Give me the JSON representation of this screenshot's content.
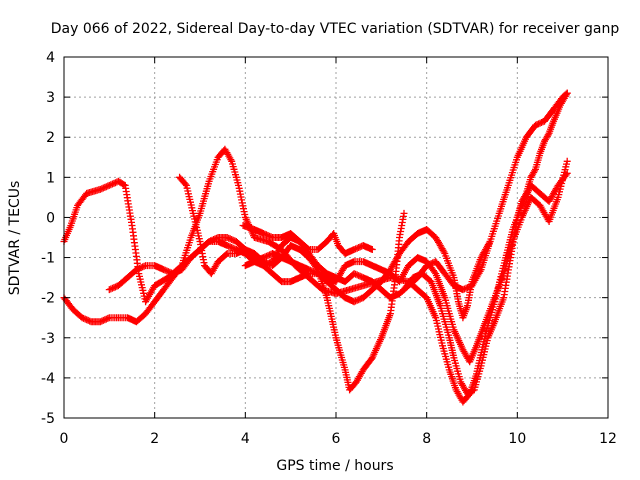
{
  "chart_data": {
    "type": "scatter",
    "title": "Day 066 of 2022, Sidereal Day-to-day VTEC variation (SDTVAR) for receiver ganp",
    "xlabel": "GPS time / hours",
    "ylabel": "SDTVAR / TECUs",
    "xlim": [
      0,
      12
    ],
    "ylim": [
      -5,
      4
    ],
    "xticks": [
      0,
      2,
      4,
      6,
      8,
      10,
      12
    ],
    "yticks": [
      -5,
      -4,
      -3,
      -2,
      -1,
      0,
      1,
      2,
      3,
      4
    ],
    "xtick_labels": [
      "0",
      "2",
      "4",
      "6",
      "8",
      "10",
      "12"
    ],
    "ytick_labels": [
      "-5",
      "-4",
      "-3",
      "-2",
      "-1",
      "0",
      "1",
      "2",
      "3",
      "4"
    ],
    "grid": true,
    "marker": "+",
    "color": "#ff0000",
    "series": [
      {
        "name": "track-1",
        "points": [
          [
            0.0,
            -0.6
          ],
          [
            0.15,
            -0.2
          ],
          [
            0.3,
            0.3
          ],
          [
            0.5,
            0.6
          ],
          [
            0.8,
            0.7
          ],
          [
            1.0,
            0.8
          ],
          [
            1.2,
            0.9
          ],
          [
            1.35,
            0.8
          ],
          [
            1.5,
            -0.2
          ],
          [
            1.65,
            -1.4
          ],
          [
            1.8,
            -2.1
          ],
          [
            2.0,
            -1.7
          ],
          [
            2.3,
            -1.5
          ],
          [
            2.6,
            -1.2
          ],
          [
            2.8,
            -0.5
          ],
          [
            3.0,
            0.1
          ],
          [
            3.2,
            0.9
          ],
          [
            3.4,
            1.5
          ],
          [
            3.55,
            1.7
          ],
          [
            3.7,
            1.4
          ],
          [
            3.85,
            0.8
          ],
          [
            4.0,
            0.0
          ],
          [
            4.2,
            -0.5
          ],
          [
            4.5,
            -0.6
          ],
          [
            4.8,
            -0.8
          ],
          [
            5.1,
            -1.2
          ],
          [
            5.4,
            -1.5
          ],
          [
            5.7,
            -1.8
          ],
          [
            6.0,
            -1.9
          ],
          [
            6.3,
            -1.8
          ],
          [
            6.6,
            -1.7
          ],
          [
            6.9,
            -1.6
          ],
          [
            7.2,
            -1.5
          ],
          [
            7.6,
            -1.6
          ],
          [
            8.0,
            -2.0
          ],
          [
            8.2,
            -2.5
          ],
          [
            8.35,
            -3.2
          ],
          [
            8.5,
            -3.8
          ],
          [
            8.65,
            -4.3
          ],
          [
            8.8,
            -4.6
          ],
          [
            8.95,
            -4.4
          ],
          [
            9.1,
            -3.9
          ],
          [
            9.3,
            -2.9
          ],
          [
            9.5,
            -2.1
          ],
          [
            9.7,
            -1.2
          ],
          [
            9.9,
            -0.3
          ],
          [
            10.1,
            0.3
          ],
          [
            10.3,
            0.8
          ],
          [
            10.5,
            0.6
          ],
          [
            10.7,
            0.4
          ],
          [
            10.9,
            0.8
          ],
          [
            11.1,
            1.1
          ]
        ]
      },
      {
        "name": "track-2",
        "points": [
          [
            0.0,
            -2.0
          ],
          [
            0.2,
            -2.3
          ],
          [
            0.4,
            -2.5
          ],
          [
            0.6,
            -2.6
          ],
          [
            0.8,
            -2.6
          ],
          [
            1.0,
            -2.5
          ],
          [
            1.2,
            -2.5
          ],
          [
            1.4,
            -2.5
          ],
          [
            1.6,
            -2.6
          ],
          [
            1.8,
            -2.4
          ],
          [
            2.0,
            -2.1
          ],
          [
            2.2,
            -1.8
          ],
          [
            2.4,
            -1.5
          ],
          [
            2.6,
            -1.2
          ],
          [
            2.8,
            -1.0
          ],
          [
            3.0,
            -0.8
          ],
          [
            3.2,
            -0.6
          ],
          [
            3.4,
            -0.6
          ],
          [
            3.6,
            -0.7
          ],
          [
            3.8,
            -0.8
          ],
          [
            4.0,
            -0.9
          ],
          [
            4.2,
            -1.1
          ],
          [
            4.4,
            -1.2
          ],
          [
            4.6,
            -1.1
          ],
          [
            4.8,
            -0.7
          ],
          [
            5.0,
            -0.5
          ],
          [
            5.2,
            -0.6
          ],
          [
            5.4,
            -0.9
          ],
          [
            5.6,
            -1.2
          ],
          [
            5.8,
            -1.4
          ],
          [
            6.0,
            -1.5
          ],
          [
            6.2,
            -1.6
          ],
          [
            6.4,
            -1.4
          ],
          [
            6.6,
            -1.5
          ],
          [
            6.8,
            -1.6
          ],
          [
            7.0,
            -1.8
          ],
          [
            7.2,
            -2.0
          ],
          [
            7.4,
            -1.9
          ],
          [
            7.6,
            -1.7
          ],
          [
            7.8,
            -1.5
          ],
          [
            8.0,
            -1.2
          ],
          [
            8.2,
            -1.1
          ],
          [
            8.4,
            -1.4
          ],
          [
            8.6,
            -1.7
          ],
          [
            8.8,
            -1.8
          ],
          [
            9.0,
            -1.7
          ],
          [
            9.2,
            -1.3
          ],
          [
            9.4,
            -0.6
          ],
          [
            9.6,
            0.1
          ],
          [
            9.8,
            0.8
          ],
          [
            10.0,
            1.5
          ],
          [
            10.2,
            2.0
          ],
          [
            10.4,
            2.3
          ],
          [
            10.6,
            2.4
          ],
          [
            10.8,
            2.7
          ],
          [
            11.0,
            3.0
          ],
          [
            11.1,
            3.1
          ]
        ]
      },
      {
        "name": "track-3",
        "points": [
          [
            2.55,
            1.0
          ],
          [
            2.7,
            0.8
          ],
          [
            2.85,
            0.1
          ],
          [
            3.0,
            -0.6
          ],
          [
            3.1,
            -1.2
          ],
          [
            3.25,
            -1.4
          ],
          [
            3.4,
            -1.1
          ],
          [
            3.6,
            -0.9
          ],
          [
            3.8,
            -0.9
          ],
          [
            4.0,
            -0.8
          ],
          [
            4.2,
            -0.9
          ],
          [
            4.4,
            -1.1
          ],
          [
            4.6,
            -1.2
          ],
          [
            4.8,
            -1.0
          ],
          [
            5.0,
            -0.7
          ],
          [
            5.2,
            -0.8
          ],
          [
            5.4,
            -1.0
          ],
          [
            5.6,
            -1.3
          ],
          [
            5.8,
            -2.0
          ],
          [
            6.0,
            -3.0
          ],
          [
            6.2,
            -3.8
          ],
          [
            6.3,
            -4.3
          ],
          [
            6.45,
            -4.1
          ],
          [
            6.6,
            -3.8
          ],
          [
            6.8,
            -3.5
          ],
          [
            7.0,
            -3.0
          ],
          [
            7.2,
            -2.4
          ],
          [
            7.3,
            -1.6
          ],
          [
            7.4,
            -0.5
          ],
          [
            7.5,
            0.1
          ]
        ]
      },
      {
        "name": "track-4",
        "points": [
          [
            1.0,
            -1.8
          ],
          [
            1.2,
            -1.7
          ],
          [
            1.4,
            -1.5
          ],
          [
            1.6,
            -1.3
          ],
          [
            1.8,
            -1.2
          ],
          [
            2.0,
            -1.2
          ],
          [
            2.2,
            -1.3
          ],
          [
            2.4,
            -1.4
          ],
          [
            2.6,
            -1.3
          ],
          [
            2.8,
            -1.0
          ],
          [
            3.0,
            -0.8
          ],
          [
            3.2,
            -0.6
          ],
          [
            3.4,
            -0.5
          ],
          [
            3.6,
            -0.5
          ],
          [
            3.8,
            -0.6
          ],
          [
            4.0,
            -0.8
          ],
          [
            4.2,
            -1.0
          ],
          [
            4.4,
            -1.2
          ],
          [
            4.6,
            -1.4
          ],
          [
            4.8,
            -1.6
          ],
          [
            5.0,
            -1.6
          ],
          [
            5.2,
            -1.5
          ],
          [
            5.4,
            -1.4
          ],
          [
            5.6,
            -1.4
          ],
          [
            5.8,
            -1.6
          ],
          [
            6.0,
            -1.8
          ],
          [
            6.2,
            -2.0
          ],
          [
            6.4,
            -2.1
          ],
          [
            6.6,
            -2.0
          ],
          [
            6.8,
            -1.8
          ],
          [
            7.0,
            -1.6
          ],
          [
            7.2,
            -1.3
          ],
          [
            7.4,
            -0.9
          ],
          [
            7.6,
            -0.6
          ],
          [
            7.8,
            -0.4
          ],
          [
            8.0,
            -0.3
          ],
          [
            8.2,
            -0.5
          ],
          [
            8.4,
            -0.9
          ],
          [
            8.6,
            -1.5
          ],
          [
            8.7,
            -2.1
          ],
          [
            8.8,
            -2.5
          ],
          [
            8.9,
            -2.2
          ],
          [
            9.0,
            -1.6
          ],
          [
            9.2,
            -1.0
          ],
          [
            9.4,
            -0.6
          ]
        ]
      },
      {
        "name": "track-5",
        "points": [
          [
            3.95,
            -0.2
          ],
          [
            4.2,
            -0.3
          ],
          [
            4.4,
            -0.4
          ],
          [
            4.6,
            -0.5
          ],
          [
            4.8,
            -0.5
          ],
          [
            5.0,
            -0.4
          ],
          [
            5.2,
            -0.6
          ],
          [
            5.4,
            -0.8
          ],
          [
            5.6,
            -0.8
          ],
          [
            5.8,
            -0.6
          ],
          [
            5.95,
            -0.4
          ],
          [
            6.05,
            -0.7
          ],
          [
            6.2,
            -0.9
          ],
          [
            6.4,
            -0.8
          ],
          [
            6.6,
            -0.7
          ],
          [
            6.8,
            -0.8
          ]
        ]
      },
      {
        "name": "track-6",
        "points": [
          [
            4.0,
            -1.2
          ],
          [
            4.2,
            -1.1
          ],
          [
            4.4,
            -1.0
          ],
          [
            4.6,
            -0.9
          ],
          [
            4.8,
            -1.0
          ],
          [
            5.0,
            -1.1
          ],
          [
            5.2,
            -1.2
          ],
          [
            5.4,
            -1.3
          ],
          [
            5.6,
            -1.4
          ],
          [
            5.8,
            -1.5
          ],
          [
            6.0,
            -1.6
          ],
          [
            6.2,
            -1.2
          ],
          [
            6.4,
            -1.1
          ],
          [
            6.6,
            -1.1
          ],
          [
            6.8,
            -1.2
          ],
          [
            7.0,
            -1.3
          ],
          [
            7.2,
            -1.4
          ],
          [
            7.4,
            -1.6
          ],
          [
            7.6,
            -1.2
          ],
          [
            7.8,
            -1.0
          ],
          [
            8.0,
            -1.1
          ],
          [
            8.2,
            -1.4
          ],
          [
            8.4,
            -2.0
          ],
          [
            8.6,
            -2.8
          ],
          [
            8.8,
            -3.3
          ],
          [
            8.95,
            -3.6
          ],
          [
            9.1,
            -3.2
          ],
          [
            9.3,
            -2.6
          ],
          [
            9.5,
            -2.0
          ],
          [
            9.7,
            -1.4
          ],
          [
            9.9,
            -0.6
          ],
          [
            10.1,
            0.0
          ],
          [
            10.3,
            0.5
          ],
          [
            10.5,
            0.3
          ],
          [
            10.7,
            -0.1
          ],
          [
            10.9,
            0.5
          ],
          [
            11.1,
            1.4
          ]
        ]
      },
      {
        "name": "track-7",
        "points": [
          [
            7.5,
            -1.8
          ],
          [
            7.7,
            -1.5
          ],
          [
            7.9,
            -1.4
          ],
          [
            8.1,
            -1.6
          ],
          [
            8.3,
            -2.2
          ],
          [
            8.5,
            -3.0
          ],
          [
            8.6,
            -3.5
          ],
          [
            8.75,
            -4.1
          ],
          [
            8.9,
            -4.4
          ],
          [
            9.05,
            -4.3
          ],
          [
            9.2,
            -3.7
          ],
          [
            9.35,
            -3.0
          ],
          [
            9.5,
            -2.6
          ],
          [
            9.7,
            -2.0
          ],
          [
            9.85,
            -1.0
          ],
          [
            10.0,
            0.0
          ],
          [
            10.1,
            0.4
          ],
          [
            10.2,
            0.6
          ],
          [
            10.3,
            1.0
          ],
          [
            10.4,
            1.2
          ],
          [
            10.5,
            1.6
          ],
          [
            10.6,
            1.9
          ],
          [
            10.7,
            2.1
          ],
          [
            10.8,
            2.4
          ],
          [
            10.95,
            2.8
          ],
          [
            11.1,
            3.1
          ]
        ]
      }
    ]
  }
}
